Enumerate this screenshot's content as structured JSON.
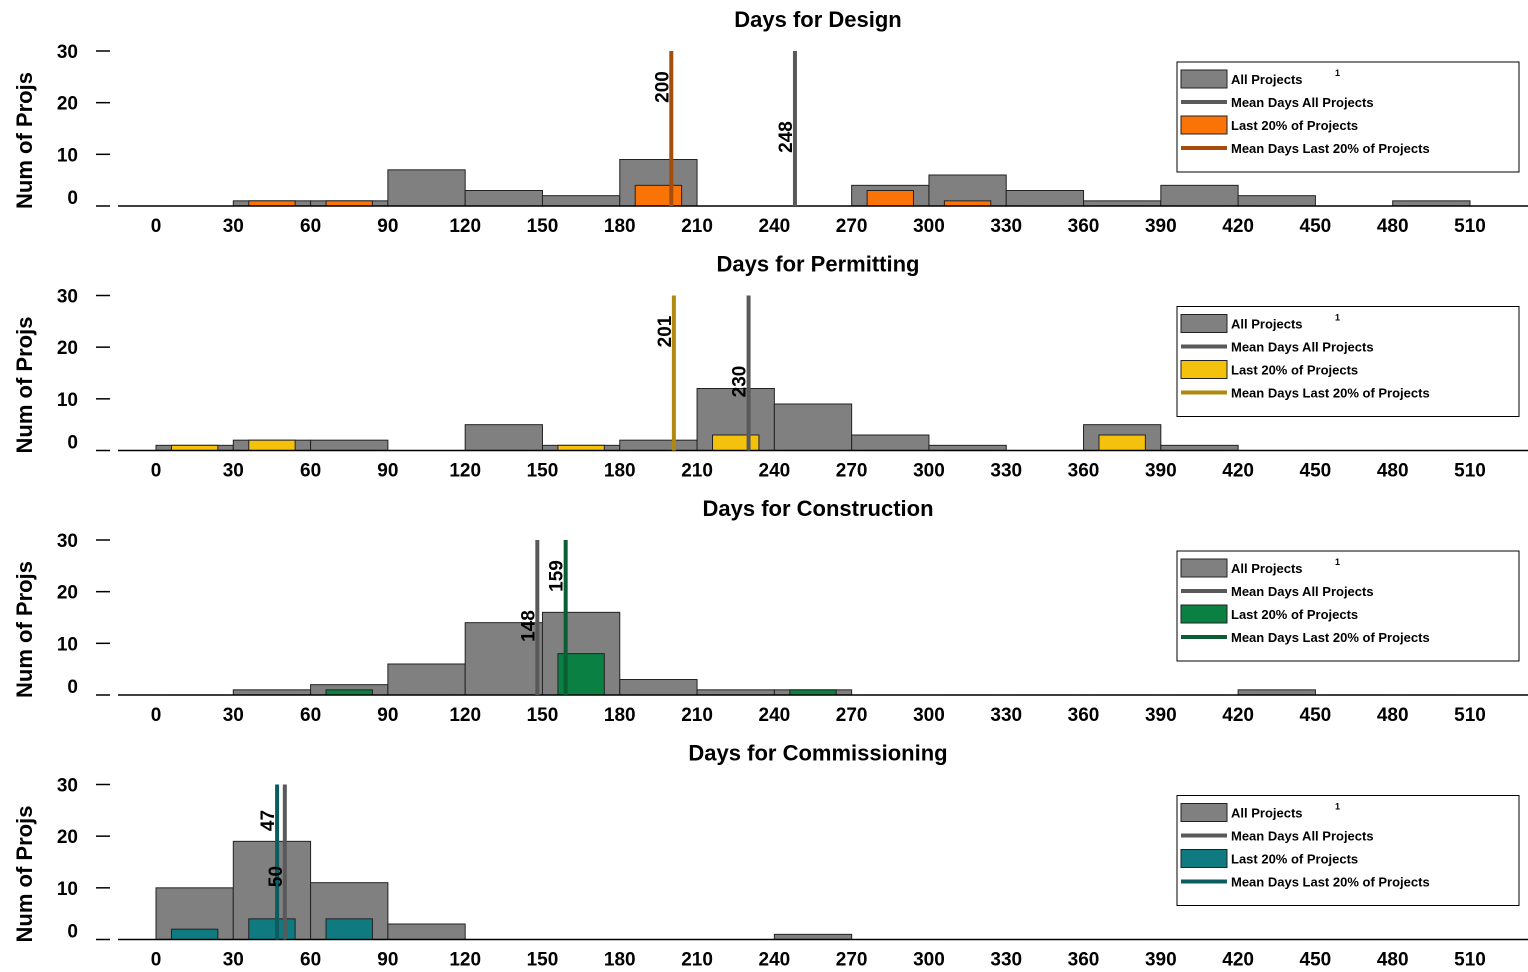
{
  "legend_labels": {
    "all": "All Projects",
    "mean_all": "Mean Days All Projects",
    "last": "Last 20% of Projects",
    "mean_last": "Mean Days Last 20% of Projects",
    "superscript": "1"
  },
  "colors": {
    "all_fill": "#808080",
    "mean_all_line": "#595959"
  },
  "chart_data": [
    {
      "type": "bar",
      "title": "Days for Design",
      "ylabel": "Num of Projs",
      "xlabel": "",
      "xlim": [
        0,
        510
      ],
      "ylim": [
        0,
        30
      ],
      "xticks": [
        "0",
        "30",
        "60",
        "90",
        "120",
        "150",
        "180",
        "210",
        "240",
        "270",
        "300",
        "330",
        "360",
        "390",
        "420",
        "450",
        "480",
        "510"
      ],
      "yticks": [
        "0",
        "10",
        "20",
        "30"
      ],
      "bin_edges": [
        0,
        30,
        60,
        90,
        120,
        150,
        180,
        210,
        240,
        270,
        300,
        330,
        360,
        390,
        420,
        450,
        480,
        510
      ],
      "legend_position": "top-right",
      "series": [
        {
          "name": "All Projects",
          "values": [
            0,
            1,
            1,
            7,
            3,
            2,
            9,
            0,
            0,
            4,
            6,
            3,
            1,
            4,
            2,
            0,
            1
          ],
          "color": "#808080"
        },
        {
          "name": "Last 20% of Projects",
          "values": [
            0,
            1,
            1,
            0,
            0,
            0,
            4,
            0,
            0,
            3,
            1,
            0,
            0,
            0,
            0,
            0,
            0
          ],
          "color": "#F97306"
        }
      ],
      "mean_all": {
        "value": 248,
        "label": "248"
      },
      "mean_last": {
        "value": 200,
        "label": "200",
        "color": "#A64D0B"
      }
    },
    {
      "type": "bar",
      "title": "Days for Permitting",
      "ylabel": "Num of Projs",
      "xlabel": "",
      "xlim": [
        0,
        510
      ],
      "ylim": [
        0,
        30
      ],
      "xticks": [
        "0",
        "30",
        "60",
        "90",
        "120",
        "150",
        "180",
        "210",
        "240",
        "270",
        "300",
        "330",
        "360",
        "390",
        "420",
        "450",
        "480",
        "510"
      ],
      "yticks": [
        "0",
        "10",
        "20",
        "30"
      ],
      "bin_edges": [
        0,
        30,
        60,
        90,
        120,
        150,
        180,
        210,
        240,
        270,
        300,
        330,
        360,
        390,
        420,
        450,
        480,
        510
      ],
      "legend_position": "top-right",
      "series": [
        {
          "name": "All Projects",
          "values": [
            1,
            2,
            2,
            0,
            5,
            1,
            2,
            12,
            9,
            3,
            1,
            0,
            5,
            1,
            0,
            0,
            0
          ],
          "color": "#808080"
        },
        {
          "name": "Last 20% of Projects",
          "values": [
            1,
            2,
            0,
            0,
            0,
            1,
            0,
            3,
            0,
            0,
            0,
            0,
            3,
            0,
            0,
            0,
            0
          ],
          "color": "#F4C20D"
        }
      ],
      "mean_all": {
        "value": 230,
        "label": "230"
      },
      "mean_last": {
        "value": 201,
        "label": "201",
        "color": "#B08A0F"
      }
    },
    {
      "type": "bar",
      "title": "Days for Construction",
      "ylabel": "Num of Projs",
      "xlabel": "",
      "xlim": [
        0,
        510
      ],
      "ylim": [
        0,
        30
      ],
      "xticks": [
        "0",
        "30",
        "60",
        "90",
        "120",
        "150",
        "180",
        "210",
        "240",
        "270",
        "300",
        "330",
        "360",
        "390",
        "420",
        "450",
        "480",
        "510"
      ],
      "yticks": [
        "0",
        "10",
        "20",
        "30"
      ],
      "bin_edges": [
        0,
        30,
        60,
        90,
        120,
        150,
        180,
        210,
        240,
        270,
        300,
        330,
        360,
        390,
        420,
        450,
        480,
        510
      ],
      "legend_position": "top-right",
      "series": [
        {
          "name": "All Projects",
          "values": [
            0,
            1,
            2,
            6,
            14,
            16,
            3,
            1,
            1,
            0,
            0,
            0,
            0,
            0,
            1,
            0,
            0
          ],
          "color": "#808080"
        },
        {
          "name": "Last 20% of Projects",
          "values": [
            0,
            0,
            1,
            0,
            0,
            8,
            0,
            0,
            1,
            0,
            0,
            0,
            0,
            0,
            0,
            0,
            0
          ],
          "color": "#0B8043"
        }
      ],
      "mean_all": {
        "value": 148,
        "label": "148"
      },
      "mean_last": {
        "value": 159,
        "label": "159",
        "color": "#0B5E34"
      }
    },
    {
      "type": "bar",
      "title": "Days for Commissioning",
      "ylabel": "Num of Projs",
      "xlabel": "",
      "xlim": [
        0,
        510
      ],
      "ylim": [
        0,
        30
      ],
      "xticks": [
        "0",
        "30",
        "60",
        "90",
        "120",
        "150",
        "180",
        "210",
        "240",
        "270",
        "300",
        "330",
        "360",
        "390",
        "420",
        "450",
        "480",
        "510"
      ],
      "yticks": [
        "0",
        "10",
        "20",
        "30"
      ],
      "bin_edges": [
        0,
        30,
        60,
        90,
        120,
        150,
        180,
        210,
        240,
        270,
        300,
        330,
        360,
        390,
        420,
        450,
        480,
        510
      ],
      "legend_position": "top-right",
      "series": [
        {
          "name": "All Projects",
          "values": [
            10,
            19,
            11,
            3,
            0,
            0,
            0,
            0,
            1,
            0,
            0,
            0,
            0,
            0,
            0,
            0,
            0
          ],
          "color": "#808080"
        },
        {
          "name": "Last 20% of Projects",
          "values": [
            2,
            4,
            4,
            0,
            0,
            0,
            0,
            0,
            0,
            0,
            0,
            0,
            0,
            0,
            0,
            0,
            0
          ],
          "color": "#0F7B80"
        }
      ],
      "mean_all": {
        "value": 50,
        "label": "50"
      },
      "mean_last": {
        "value": 47,
        "label": "47",
        "color": "#0B5C5E"
      }
    }
  ]
}
